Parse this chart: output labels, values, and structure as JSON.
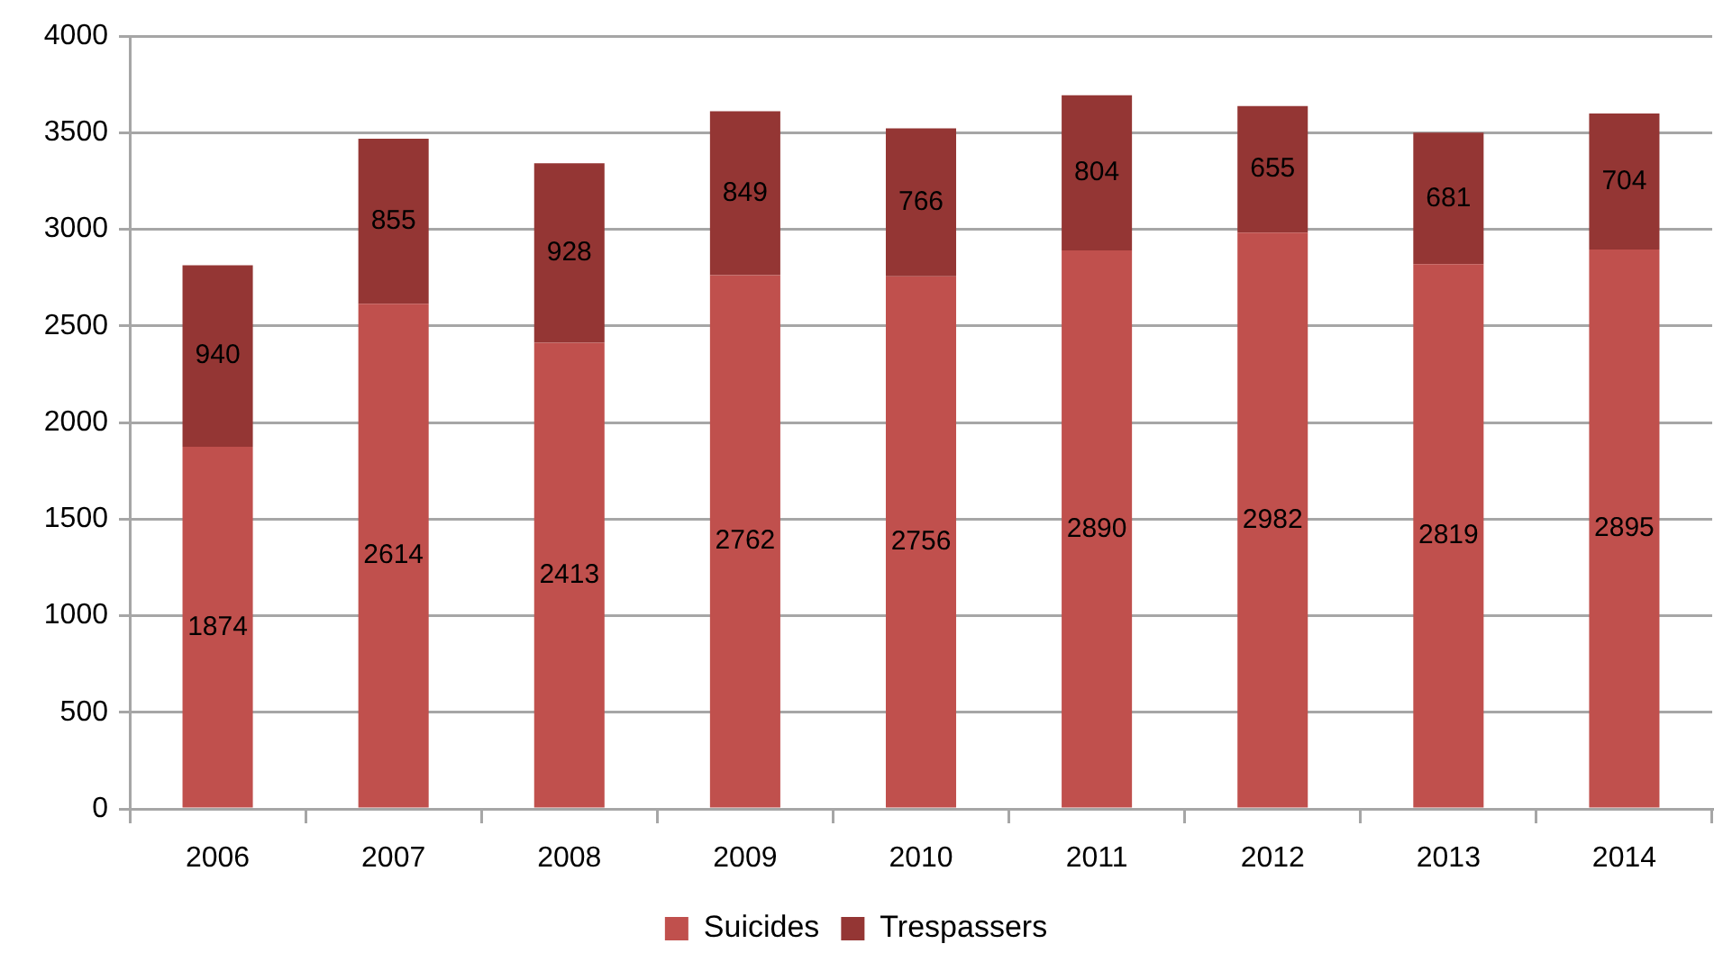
{
  "chart_data": {
    "type": "bar",
    "categories": [
      "2006",
      "2007",
      "2008",
      "2009",
      "2010",
      "2011",
      "2012",
      "2013",
      "2014"
    ],
    "series": [
      {
        "name": "Suicides",
        "color": "#c0504d",
        "values": [
          1874,
          2614,
          2413,
          2762,
          2756,
          2890,
          2982,
          2819,
          2895
        ]
      },
      {
        "name": "Trespassers",
        "color": "#943634",
        "values": [
          940,
          855,
          928,
          849,
          766,
          804,
          655,
          681,
          704
        ]
      }
    ],
    "stacked": true,
    "ylim": [
      0,
      4000
    ],
    "yticks": [
      0,
      500,
      1000,
      1500,
      2000,
      2500,
      3000,
      3500,
      4000
    ],
    "grid": "y",
    "legend": "bottom",
    "data_labels": true
  }
}
